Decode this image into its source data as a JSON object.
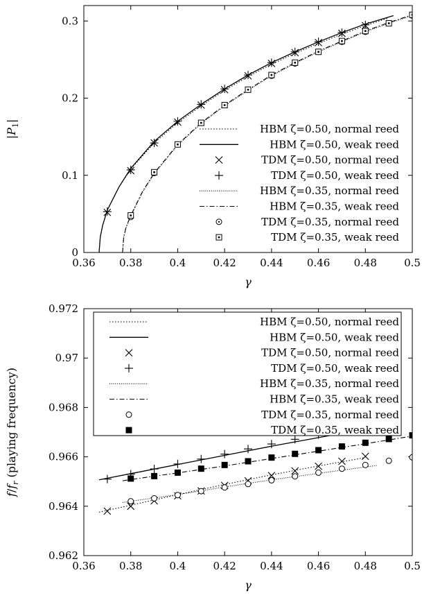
{
  "chart_data": [
    {
      "type": "line",
      "xlabel": "γ",
      "ylabel": "|P1|",
      "xlim": [
        0.36,
        0.5
      ],
      "ylim": [
        0,
        0.32
      ],
      "xticks": [
        "0.36",
        "0.38",
        "0.4",
        "0.42",
        "0.44",
        "0.46",
        "0.48",
        "0.5"
      ],
      "yticks": [
        "0",
        "0.1",
        "0.2",
        "0.3"
      ],
      "legend_position": "lower-right",
      "series": [
        {
          "name": "HBM ζ=0.50, normal reed",
          "style": "dotted",
          "x": [
            0.3665,
            0.367,
            0.368,
            0.37,
            0.375,
            0.38,
            0.39,
            0.4,
            0.41,
            0.42,
            0.43,
            0.44,
            0.45,
            0.46,
            0.47,
            0.48,
            0.49
          ],
          "y": [
            0,
            0.02,
            0.035,
            0.055,
            0.085,
            0.108,
            0.142,
            0.168,
            0.19,
            0.21,
            0.228,
            0.244,
            0.258,
            0.271,
            0.283,
            0.294,
            0.304
          ]
        },
        {
          "name": "HBM ζ=0.50, weak reed",
          "style": "solid",
          "x": [
            0.3665,
            0.367,
            0.368,
            0.37,
            0.375,
            0.38,
            0.39,
            0.4,
            0.41,
            0.42,
            0.43,
            0.44,
            0.45,
            0.46,
            0.47,
            0.48,
            0.492
          ],
          "y": [
            0,
            0.02,
            0.035,
            0.055,
            0.085,
            0.109,
            0.144,
            0.17,
            0.192,
            0.212,
            0.23,
            0.246,
            0.26,
            0.273,
            0.285,
            0.296,
            0.307
          ]
        },
        {
          "name": "TDM ζ=0.50, normal reed",
          "style": "x",
          "x": [
            0.37,
            0.38,
            0.39,
            0.4,
            0.41,
            0.42,
            0.43,
            0.44,
            0.45,
            0.46,
            0.47,
            0.48
          ],
          "y": [
            0.052,
            0.106,
            0.142,
            0.169,
            0.191,
            0.211,
            0.229,
            0.245,
            0.259,
            0.272,
            0.284,
            0.294
          ]
        },
        {
          "name": "TDM ζ=0.50, weak reed",
          "style": "plus",
          "x": [
            0.37,
            0.38,
            0.39,
            0.4,
            0.41,
            0.42,
            0.43,
            0.44,
            0.45,
            0.46,
            0.47,
            0.48
          ],
          "y": [
            0.053,
            0.107,
            0.142,
            0.17,
            0.192,
            0.212,
            0.23,
            0.246,
            0.26,
            0.273,
            0.285,
            0.295
          ]
        },
        {
          "name": "HBM ζ=0.35, normal reed",
          "style": "dotted-thin",
          "x": [
            0.3765,
            0.377,
            0.378,
            0.38,
            0.385,
            0.39,
            0.4,
            0.41,
            0.42,
            0.43,
            0.44,
            0.45,
            0.46,
            0.47,
            0.48,
            0.49,
            0.5
          ],
          "y": [
            0,
            0.02,
            0.032,
            0.047,
            0.078,
            0.102,
            0.139,
            0.167,
            0.19,
            0.21,
            0.229,
            0.245,
            0.26,
            0.273,
            0.286,
            0.297,
            0.307
          ]
        },
        {
          "name": "HBM ζ=0.35, weak reed",
          "style": "dashdot",
          "x": [
            0.3765,
            0.377,
            0.378,
            0.38,
            0.385,
            0.39,
            0.4,
            0.41,
            0.42,
            0.43,
            0.44,
            0.45,
            0.46,
            0.47,
            0.48,
            0.49,
            0.5
          ],
          "y": [
            0,
            0.02,
            0.033,
            0.048,
            0.079,
            0.103,
            0.14,
            0.168,
            0.191,
            0.211,
            0.23,
            0.246,
            0.261,
            0.274,
            0.287,
            0.298,
            0.308
          ]
        },
        {
          "name": "TDM ζ=0.35, normal reed",
          "style": "circle-dot",
          "x": [
            0.38,
            0.39,
            0.4,
            0.41,
            0.42,
            0.43,
            0.44,
            0.45,
            0.46,
            0.47,
            0.48,
            0.49,
            0.5
          ],
          "y": [
            0.046,
            0.103,
            0.14,
            0.168,
            0.191,
            0.211,
            0.229,
            0.245,
            0.26,
            0.273,
            0.286,
            0.297,
            0.307
          ]
        },
        {
          "name": "TDM ζ=0.35, weak reed",
          "style": "square-dot",
          "x": [
            0.38,
            0.39,
            0.4,
            0.41,
            0.42,
            0.43,
            0.44,
            0.45,
            0.46,
            0.47,
            0.48,
            0.49,
            0.5
          ],
          "y": [
            0.048,
            0.104,
            0.14,
            0.168,
            0.191,
            0.211,
            0.23,
            0.246,
            0.26,
            0.274,
            0.287,
            0.297,
            0.308
          ]
        }
      ]
    },
    {
      "type": "line",
      "xlabel": "γ",
      "ylabel": "f/fr (playing frequency)",
      "xlim": [
        0.36,
        0.5
      ],
      "ylim": [
        0.962,
        0.972
      ],
      "xticks": [
        "0.36",
        "0.38",
        "0.4",
        "0.42",
        "0.44",
        "0.46",
        "0.48",
        "0.5"
      ],
      "yticks": [
        "0.962",
        "0.964",
        "0.966",
        "0.968",
        "0.97",
        "0.972"
      ],
      "legend_position": "top-right",
      "series": [
        {
          "name": "HBM ζ=0.50, normal reed",
          "style": "dotted",
          "x": [
            0.3665,
            0.38,
            0.4,
            0.42,
            0.44,
            0.46,
            0.48
          ],
          "y": [
            0.96376,
            0.96404,
            0.96447,
            0.96488,
            0.96527,
            0.96563,
            0.96597
          ]
        },
        {
          "name": "HBM ζ=0.50, weak reed",
          "style": "solid",
          "x": [
            0.3665,
            0.38,
            0.4,
            0.42,
            0.44,
            0.46,
            0.48,
            0.492
          ],
          "y": [
            0.96507,
            0.96532,
            0.96569,
            0.96606,
            0.96643,
            0.96678,
            0.96712,
            0.96737
          ]
        },
        {
          "name": "TDM ζ=0.50, normal reed",
          "style": "x",
          "x": [
            0.37,
            0.38,
            0.39,
            0.4,
            0.41,
            0.42,
            0.43,
            0.44,
            0.45,
            0.46,
            0.47,
            0.48
          ],
          "y": [
            0.9638,
            0.964,
            0.96422,
            0.96442,
            0.96462,
            0.96484,
            0.96503,
            0.96524,
            0.96543,
            0.96562,
            0.96582,
            0.96602
          ]
        },
        {
          "name": "TDM ζ=0.50, weak reed",
          "style": "plus",
          "x": [
            0.37,
            0.38,
            0.39,
            0.4,
            0.41,
            0.42,
            0.43,
            0.44,
            0.45,
            0.46,
            0.47,
            0.48
          ],
          "y": [
            0.9651,
            0.9653,
            0.96551,
            0.96571,
            0.96591,
            0.96611,
            0.96632,
            0.96652,
            0.96671,
            0.9669,
            0.96709,
            0.96728
          ]
        },
        {
          "name": "HBM ζ=0.35, normal reed",
          "style": "dotted-thin",
          "x": [
            0.3765,
            0.38,
            0.4,
            0.42,
            0.44,
            0.46,
            0.48,
            0.485
          ],
          "y": [
            0.96415,
            0.9642,
            0.96447,
            0.96478,
            0.96507,
            0.96533,
            0.96559,
            0.96565
          ]
        },
        {
          "name": "HBM ζ=0.35, weak reed",
          "style": "dashdot",
          "x": [
            0.3765,
            0.38,
            0.4,
            0.42,
            0.44,
            0.46,
            0.48,
            0.5
          ],
          "y": [
            0.96503,
            0.96508,
            0.96535,
            0.96563,
            0.96593,
            0.96623,
            0.96653,
            0.96684
          ]
        },
        {
          "name": "TDM ζ=0.35, normal reed",
          "style": "circle",
          "x": [
            0.38,
            0.39,
            0.4,
            0.41,
            0.42,
            0.43,
            0.44,
            0.45,
            0.46,
            0.47,
            0.48,
            0.49,
            0.5
          ],
          "y": [
            0.9642,
            0.96432,
            0.96445,
            0.96461,
            0.96476,
            0.9649,
            0.96505,
            0.96521,
            0.96536,
            0.96552,
            0.96567,
            0.96584,
            0.96598
          ]
        },
        {
          "name": "TDM ζ=0.35, weak reed",
          "style": "filled-square",
          "x": [
            0.38,
            0.39,
            0.4,
            0.41,
            0.42,
            0.43,
            0.44,
            0.45,
            0.46,
            0.47,
            0.48,
            0.49,
            0.5
          ],
          "y": [
            0.96512,
            0.96522,
            0.96536,
            0.96552,
            0.96567,
            0.96582,
            0.96597,
            0.96612,
            0.96627,
            0.96642,
            0.96657,
            0.96672,
            0.96687
          ]
        }
      ]
    }
  ]
}
